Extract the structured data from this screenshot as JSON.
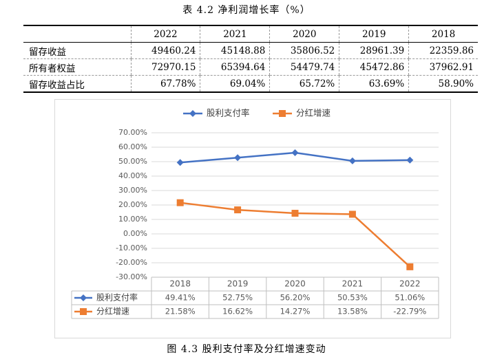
{
  "table_caption": "表 4.2   净利润增长率（%）",
  "table": {
    "header": [
      "",
      "2022",
      "2021",
      "2020",
      "2019",
      "2018"
    ],
    "rows": [
      [
        "留存收益",
        "49460.24",
        "45148.88",
        "35806.52",
        "28961.39",
        "22359.86"
      ],
      [
        "所有者权益",
        "72970.15",
        "65394.64",
        "54479.74",
        "45472.86",
        "37962.91"
      ],
      [
        "留存收益占比",
        "67.78%",
        "69.04%",
        "65.72%",
        "63.69%",
        "58.90%"
      ]
    ]
  },
  "figure_caption": "图 4.3   股利支付率及分红增速变动",
  "chart_data": {
    "type": "line",
    "categories": [
      "2018",
      "2019",
      "2020",
      "2021",
      "2022"
    ],
    "y_ticks": [
      "70.00%",
      "60.00%",
      "50.00%",
      "40.00%",
      "30.00%",
      "20.00%",
      "10.00%",
      "0.00%",
      "-10.00%",
      "-20.00%",
      "-30.00%"
    ],
    "ylim": [
      -30,
      70
    ],
    "grid": true,
    "legend_position": "top",
    "series": [
      {
        "name": "股利支付率",
        "color": "#4472C4",
        "marker": "diamond",
        "values": [
          49.41,
          52.75,
          56.2,
          50.53,
          51.06
        ],
        "labels": [
          "49.41%",
          "52.75%",
          "56.20%",
          "50.53%",
          "51.06%"
        ]
      },
      {
        "name": "分红增速",
        "color": "#ED7D31",
        "marker": "square",
        "values": [
          21.58,
          16.62,
          14.27,
          13.58,
          -22.79
        ],
        "labels": [
          "21.58%",
          "16.62%",
          "14.27%",
          "13.58%",
          "-22.79%"
        ]
      }
    ]
  }
}
